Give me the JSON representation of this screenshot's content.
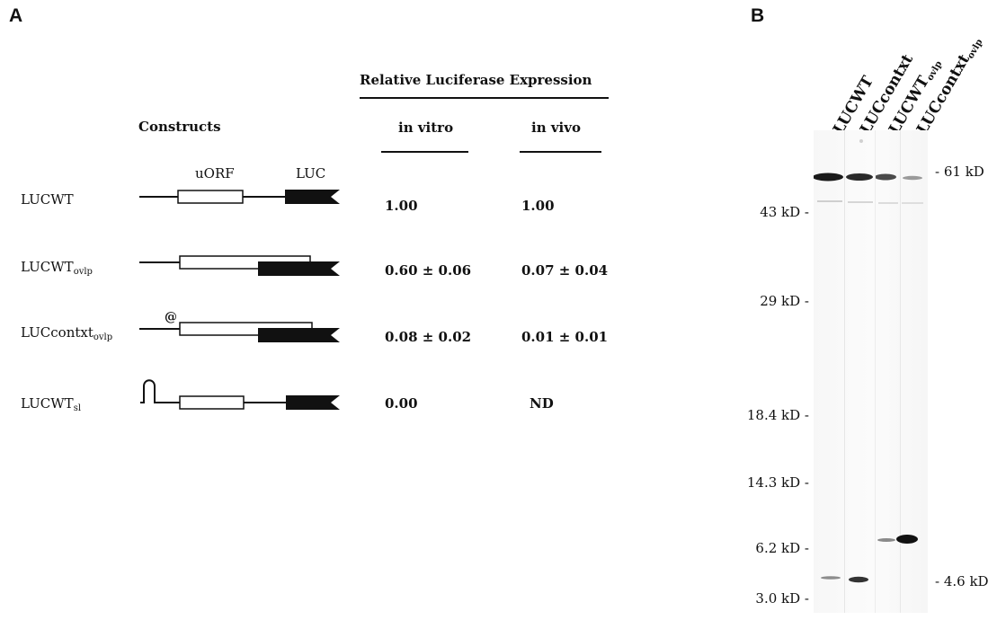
{
  "panelA": {
    "letter": "A",
    "expression_header": "Relative Luciferase Expression",
    "constructs_header": "Constructs",
    "col_invitro": "in vitro",
    "col_invivo": "in vivo",
    "uorf_label": "uORF",
    "luc_label": "LUC",
    "at_symbol": "@",
    "rows": [
      {
        "name": "LUCWT",
        "sub": "",
        "invitro": "1.00",
        "invivo": "1.00"
      },
      {
        "name": "LUCWT",
        "sub": "ovlp",
        "invitro": "0.60 ± 0.06",
        "invivo": "0.07 ± 0.04"
      },
      {
        "name": "LUCcontxt",
        "sub": "ovlp",
        "invitro": "0.08 ± 0.02",
        "invivo": "0.01 ± 0.01"
      },
      {
        "name": "LUCWT",
        "sub": "sl",
        "invitro": "0.00",
        "invivo": "ND"
      }
    ]
  },
  "panelB": {
    "letter": "B",
    "lanes": [
      {
        "name": "LUCWT",
        "sub": ""
      },
      {
        "name": "LUCcontxt",
        "sub": ""
      },
      {
        "name": "LUCWT",
        "sub": "ovlp"
      },
      {
        "name": "LUCcontxt",
        "sub": "ovlp"
      }
    ],
    "markers_left": [
      "43 kD -",
      "29 kD -",
      "18.4 kD -",
      "14.3 kD -",
      "6.2 kD -",
      "3.0 kD -"
    ],
    "markers_right": [
      "- 61 kD",
      "- 4.6 kD"
    ]
  }
}
